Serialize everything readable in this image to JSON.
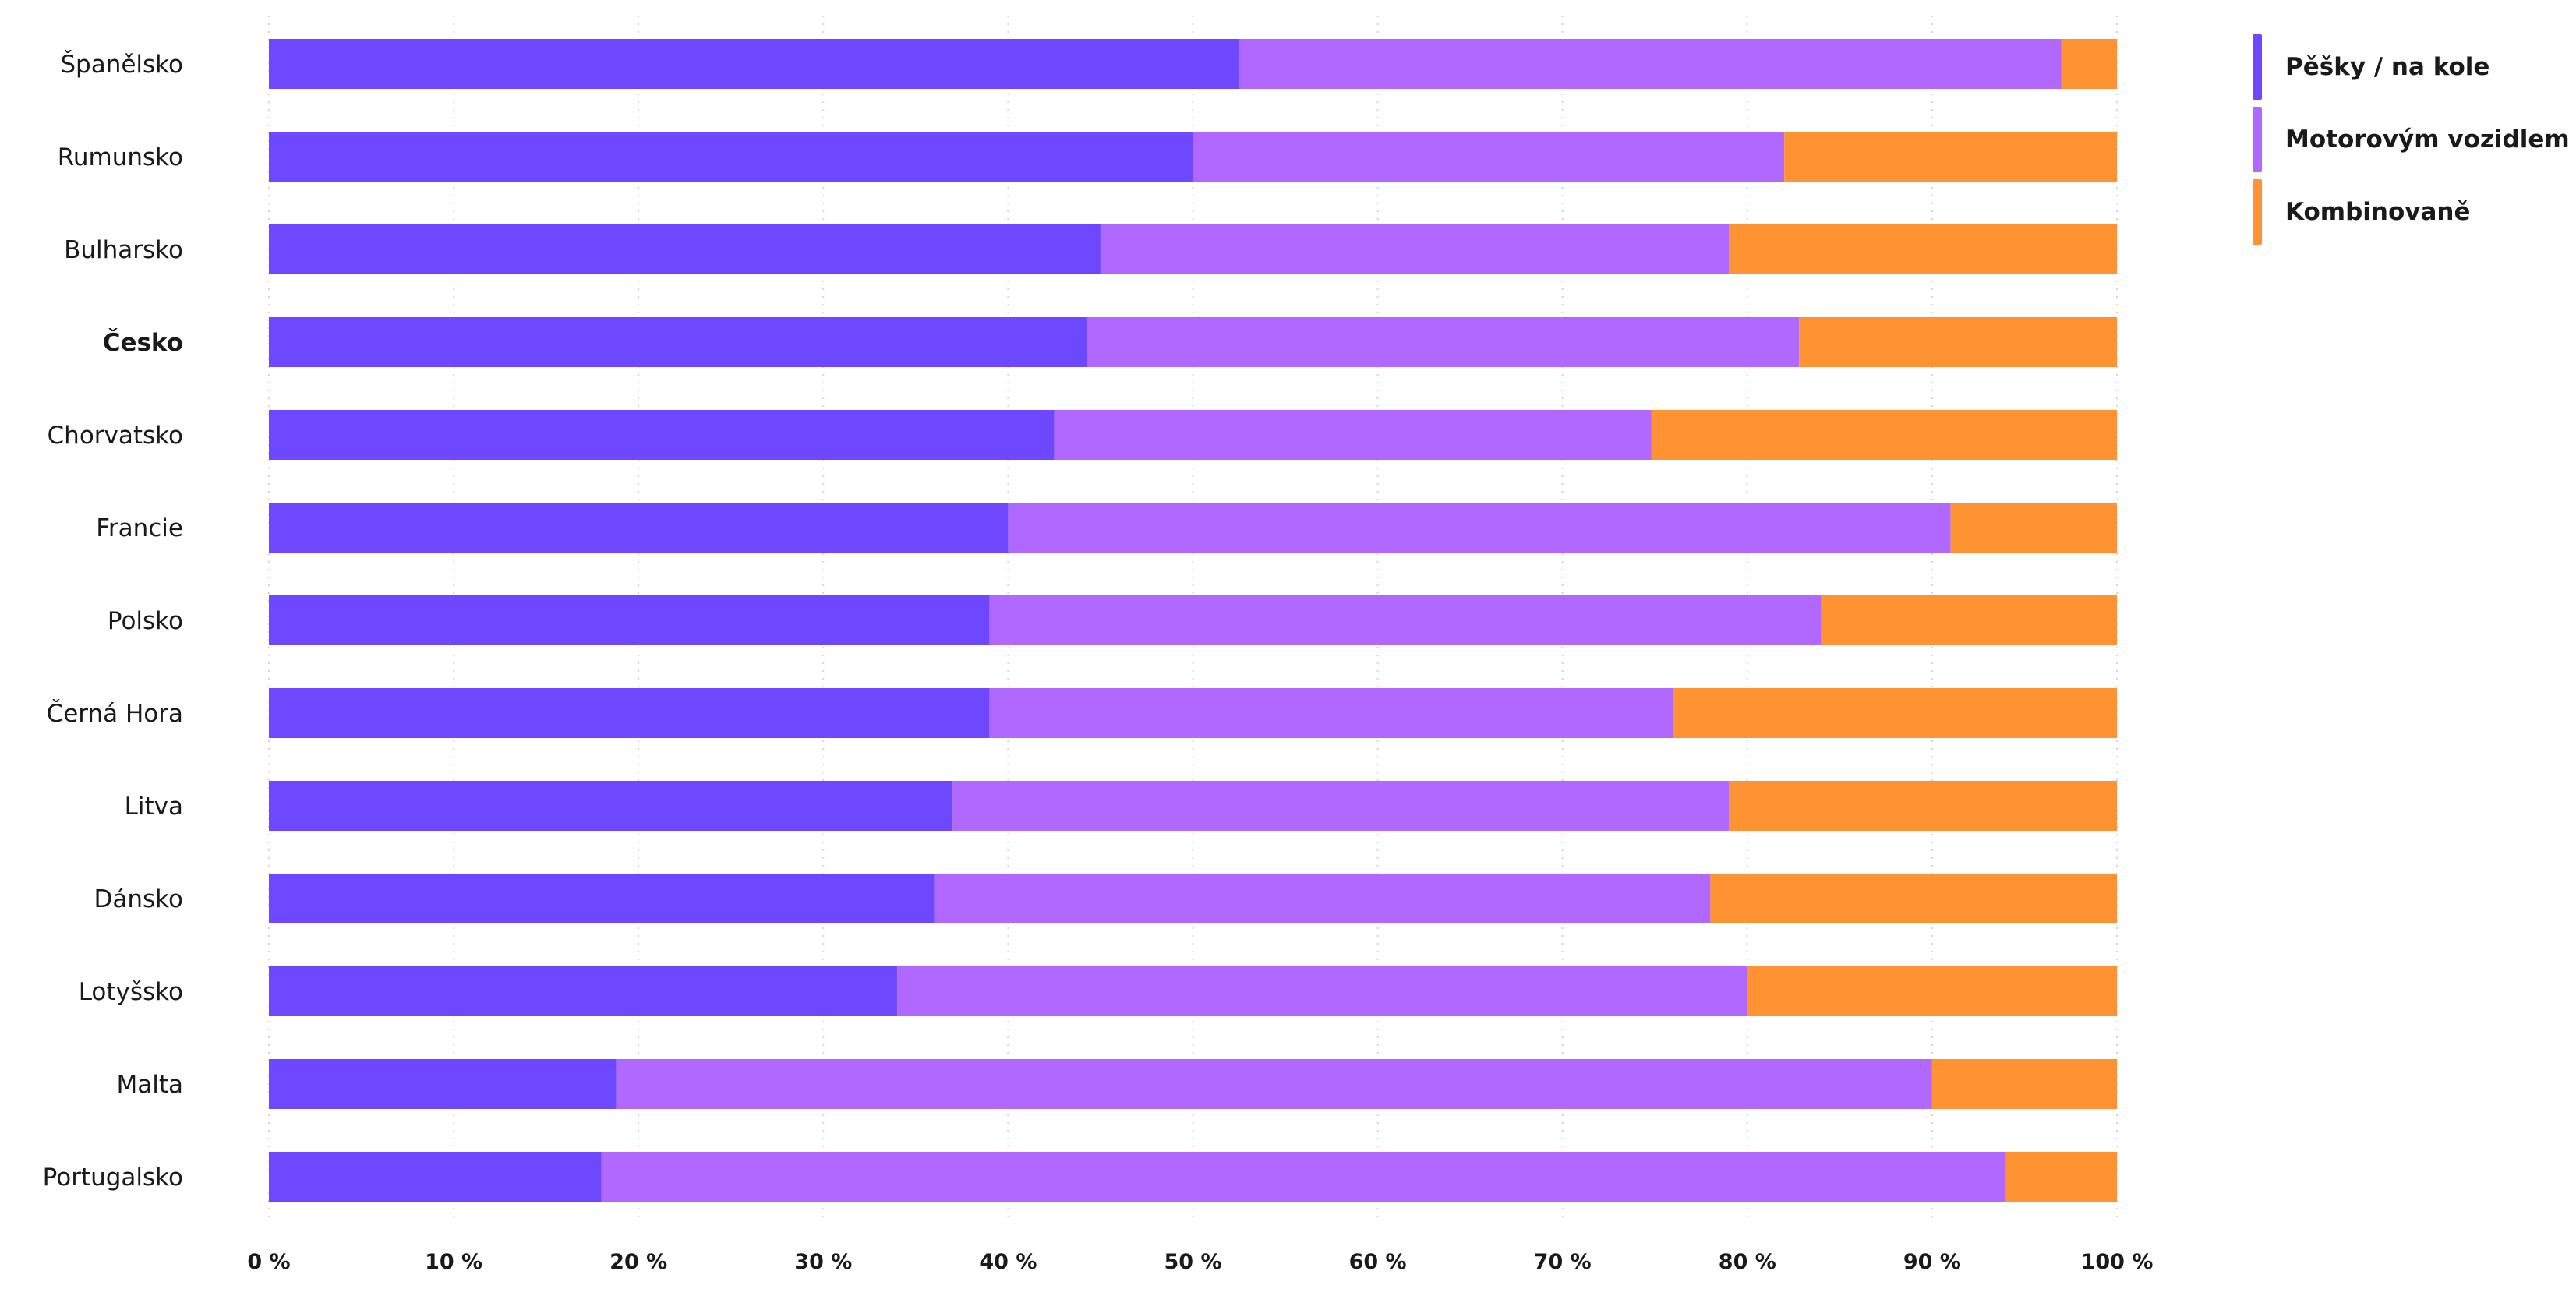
{
  "chart_data": {
    "type": "bar",
    "orientation": "horizontal",
    "stacked": true,
    "categories": [
      "Španělsko",
      "Rumunsko",
      "Bulharsko",
      "Česko",
      "Chorvatsko",
      "Francie",
      "Polsko",
      "Černá Hora",
      "Litva",
      "Dánsko",
      "Lotyšsko",
      "Malta",
      "Portugalsko"
    ],
    "highlighted_category": "Česko",
    "series": [
      {
        "name": "Pěšky / na kole",
        "color": "#6e48ff",
        "values": [
          52.5,
          50,
          45,
          44.3,
          42.5,
          40,
          39,
          39,
          37,
          36,
          34,
          18.8,
          18
        ]
      },
      {
        "name": "Motorovým vozidlem",
        "color": "#b068ff",
        "values": [
          44.5,
          32,
          34,
          38.5,
          32.3,
          51,
          45,
          37,
          42,
          42,
          46,
          71.2,
          76
        ]
      },
      {
        "name": "Kombinovaně",
        "color": "#ff9333",
        "values": [
          3,
          18,
          21,
          17.2,
          25.2,
          9,
          16,
          24,
          21,
          22,
          20,
          10,
          6
        ]
      }
    ],
    "xlim": [
      0,
      100
    ],
    "xticks": [
      "0 %",
      "10 %",
      "20 %",
      "30 %",
      "40 %",
      "50 %",
      "60 %",
      "70 %",
      "80 %",
      "90 %",
      "100 %"
    ],
    "grid": "vertical-dotted",
    "legend_position": "top-right",
    "title": "",
    "xlabel": "",
    "ylabel": ""
  }
}
